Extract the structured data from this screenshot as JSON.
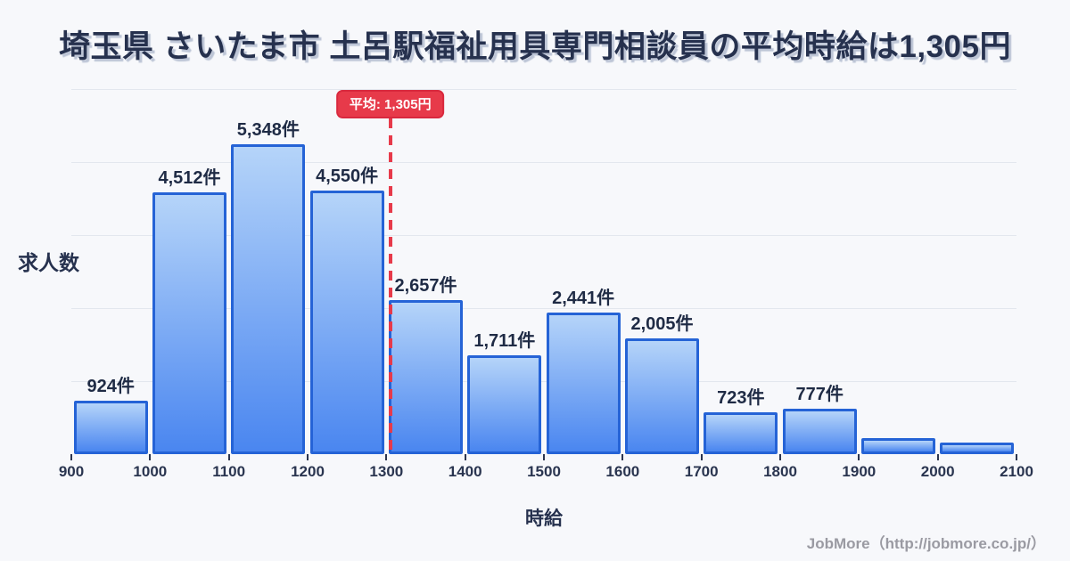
{
  "title": "埼玉県 さいたま市 土呂駅福祉用具専門相談員の平均時給は1,305円",
  "average": {
    "badge_label": "平均: 1,305円",
    "value": 1305
  },
  "chart_data": {
    "type": "bar",
    "title": "埼玉県 さいたま市 土呂駅福祉用具専門相談員の平均時給は1,305円",
    "xlabel": "時給",
    "ylabel": "求人数",
    "x_ticks": [
      900,
      1000,
      1100,
      1200,
      1300,
      1400,
      1500,
      1600,
      1700,
      1800,
      1900,
      2000,
      2100
    ],
    "bin_edges": [
      900,
      1000,
      1100,
      1200,
      1300,
      1400,
      1500,
      1600,
      1700,
      1800,
      1900,
      2000,
      2100
    ],
    "values": [
      924,
      4512,
      5348,
      4550,
      2657,
      1711,
      2441,
      2005,
      723,
      777,
      270,
      205
    ],
    "bar_labels": [
      "924件",
      "4,512件",
      "5,348件",
      "4,550件",
      "2,657件",
      "1,711件",
      "2,441件",
      "2,005件",
      "723件",
      "777件",
      "",
      ""
    ],
    "average_line": {
      "x": 1305,
      "label": "平均: 1,305円"
    },
    "xlim": [
      900,
      2100
    ],
    "ylim": [
      0,
      6300
    ],
    "grid": "horizontal",
    "gridline_count": 5,
    "legend": "none"
  },
  "colors": {
    "background": "#f7f8fb",
    "title_text": "#26314e",
    "bar_fill_top": "#b5d4f9",
    "bar_fill_bottom": "#4a86f0",
    "bar_border": "#2563d6",
    "gridline": "#e3e7ee",
    "average_red": "#e73a4a",
    "label_text": "#1f2b45",
    "footer_text": "#9a9aa2"
  },
  "footer": {
    "credit": "JobMore（http://jobmore.co.jp/）"
  }
}
